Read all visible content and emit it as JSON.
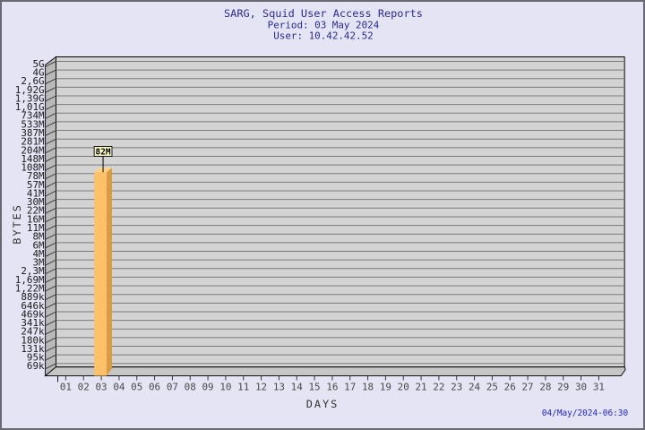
{
  "chart_data": {
    "type": "bar",
    "title": "SARG, Squid User Access Reports",
    "subtitle": [
      "Period: 03 May 2024",
      "User: 10.42.42.52"
    ],
    "xlabel": "DAYS",
    "ylabel": "BYTES",
    "y_scale": "log",
    "grid": true,
    "legend": null,
    "y_tick_labels": [
      "5G",
      "4G",
      "2,6G",
      "1,92G",
      "1,39G",
      "1,01G",
      "734M",
      "533M",
      "387M",
      "281M",
      "204M",
      "148M",
      "108M",
      "78M",
      "57M",
      "41M",
      "30M",
      "22M",
      "16M",
      "11M",
      "8M",
      "6M",
      "4M",
      "3M",
      "2,3M",
      "1,69M",
      "1,22M",
      "889k",
      "646k",
      "469k",
      "341k",
      "247k",
      "180k",
      "131k",
      "95k",
      "69k"
    ],
    "y_range": [
      "69k",
      "5G"
    ],
    "categories": [
      "01",
      "02",
      "03",
      "04",
      "05",
      "06",
      "07",
      "08",
      "09",
      "10",
      "11",
      "12",
      "13",
      "14",
      "15",
      "16",
      "17",
      "18",
      "19",
      "20",
      "21",
      "22",
      "23",
      "24",
      "25",
      "26",
      "27",
      "28",
      "29",
      "30",
      "31"
    ],
    "values": [
      null,
      null,
      "82M",
      null,
      null,
      null,
      null,
      null,
      null,
      null,
      null,
      null,
      null,
      null,
      null,
      null,
      null,
      null,
      null,
      null,
      null,
      null,
      null,
      null,
      null,
      null,
      null,
      null,
      null,
      null,
      null
    ],
    "bar_value_labels": [
      {
        "day": "03",
        "label": "82M"
      }
    ]
  },
  "footer": {
    "generated": "04/May/2024-06:30"
  },
  "colors": {
    "background": "#E4E4F4",
    "plot_wall": "#D3D3D3",
    "plot_side_wall": "#B9B9B9",
    "plot_floor": "#C6C6C6",
    "gridline": "#7A7A7A",
    "bar_face": "#FCC169",
    "bar_side": "#DA9B41",
    "bar_top": "#FDD288",
    "value_box_bg": "#FFFFC8",
    "title_text": "#2A2A90",
    "timestamp_text": "#2424C4"
  }
}
